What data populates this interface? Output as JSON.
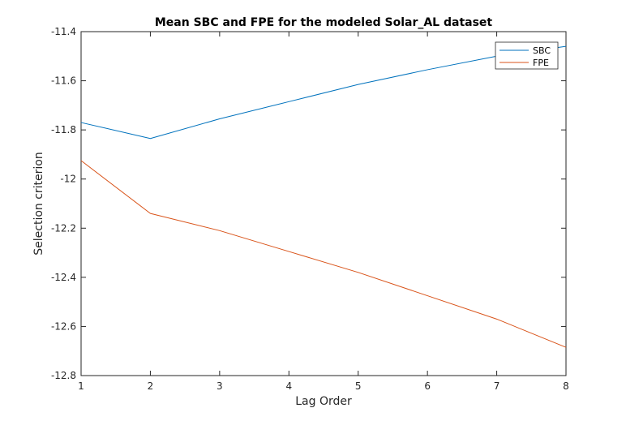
{
  "chart_data": {
    "type": "line",
    "title": "Mean SBC and FPE for the modeled Solar_AL dataset",
    "xlabel": "Lag Order",
    "ylabel": "Selection criterion",
    "xlim": [
      1,
      8
    ],
    "ylim": [
      -12.8,
      -11.4
    ],
    "xticks": [
      1,
      2,
      3,
      4,
      5,
      6,
      7,
      8
    ],
    "yticks": [
      -11.4,
      -11.6,
      -11.8,
      -12,
      -12.2,
      -12.4,
      -12.6,
      -12.8
    ],
    "ytick_labels": [
      "-11.4",
      "-11.6",
      "-11.8",
      "-12",
      "-12.2",
      "-12.4",
      "-12.6",
      "-12.8"
    ],
    "grid": false,
    "legend_position": "top-right",
    "x": [
      1,
      2,
      3,
      4,
      5,
      6,
      7,
      8
    ],
    "series": [
      {
        "name": "SBC",
        "color": "#0072BD",
        "values": [
          -11.77,
          -11.835,
          -11.755,
          -11.685,
          -11.615,
          -11.555,
          -11.5,
          -11.46
        ]
      },
      {
        "name": "FPE",
        "color": "#D95319",
        "values": [
          -11.925,
          -12.14,
          -12.21,
          -12.295,
          -12.38,
          -12.475,
          -12.57,
          -12.685
        ]
      }
    ]
  }
}
